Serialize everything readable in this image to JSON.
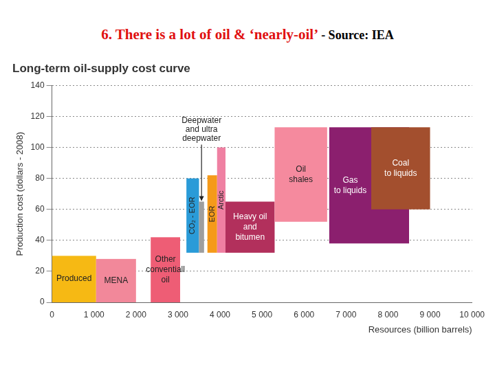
{
  "header": {
    "title": "6. There is a lot of oil & ‘nearly-oil’",
    "source": "- Source: IEA"
  },
  "chart_data": {
    "type": "bar",
    "title": "Long-term oil-supply cost curve",
    "x_label": "Resources (billion barrels)",
    "y_label": "Production cost (dollars - 2008)",
    "xlim": [
      0,
      10000
    ],
    "xticks": [
      0,
      {
        "value": 1000,
        "label": "1 000"
      },
      {
        "value": 2000,
        "label": "2 000"
      },
      {
        "value": 3000,
        "label": "3 000"
      },
      {
        "value": 4000,
        "label": "4 000"
      },
      {
        "value": 5000,
        "label": "5 000"
      },
      {
        "value": 6000,
        "label": "6 000"
      },
      {
        "value": 7000,
        "label": "7 000"
      },
      {
        "value": 8000,
        "label": "8 000"
      },
      {
        "value": 9000,
        "label": "9 000"
      },
      {
        "value": 10000,
        "label": "10 000"
      }
    ],
    "ylim": [
      0,
      140
    ],
    "yticks": [
      0,
      20,
      40,
      60,
      80,
      100,
      120,
      140
    ],
    "grid": true,
    "series": [
      {
        "name": "Produced",
        "color": "#f6b914",
        "x": [
          0,
          1050
        ],
        "values": [
          0,
          30
        ]
      },
      {
        "name": "MENA",
        "color": "#f2889a",
        "x": [
          1050,
          2000
        ],
        "values": [
          0,
          28
        ]
      },
      {
        "name": "Other\nconventiall\noil",
        "color": "#ee5d75",
        "x": [
          2350,
          3050
        ],
        "values": [
          0,
          42
        ]
      },
      {
        "name": "CO₂ - EOR",
        "color": "#2a9bd8",
        "x": [
          3200,
          3500
        ],
        "values": [
          32,
          80
        ]
      },
      {
        "name": "Deepwater\nand ultra\ndeepwater",
        "color": "#9e9e9e",
        "x": [
          3500,
          3620
        ],
        "values": [
          32,
          65
        ]
      },
      {
        "name": "EOR",
        "color": "#f59a1a",
        "x": [
          3700,
          3930
        ],
        "values": [
          32,
          82
        ]
      },
      {
        "name": "Arctic",
        "color": "#ef80a2",
        "x": [
          3930,
          4130
        ],
        "values": [
          32,
          100
        ]
      },
      {
        "name": "Heavy oil\nand\nbitumen",
        "color": "#b2305c",
        "x": [
          4130,
          5300
        ],
        "values": [
          32,
          65
        ]
      },
      {
        "name": "Oil\nshales",
        "color": "#f58a9e",
        "x": [
          5300,
          6550
        ],
        "values": [
          52,
          113
        ]
      },
      {
        "name": "Gas\nto liquids",
        "color": "#8b1f6e",
        "x": [
          6600,
          8500
        ],
        "values": [
          38,
          113
        ]
      },
      {
        "name": "Coal\nto liquids",
        "color": "#a34f2e",
        "x": [
          7600,
          9000
        ],
        "values": [
          60,
          113
        ]
      }
    ]
  }
}
